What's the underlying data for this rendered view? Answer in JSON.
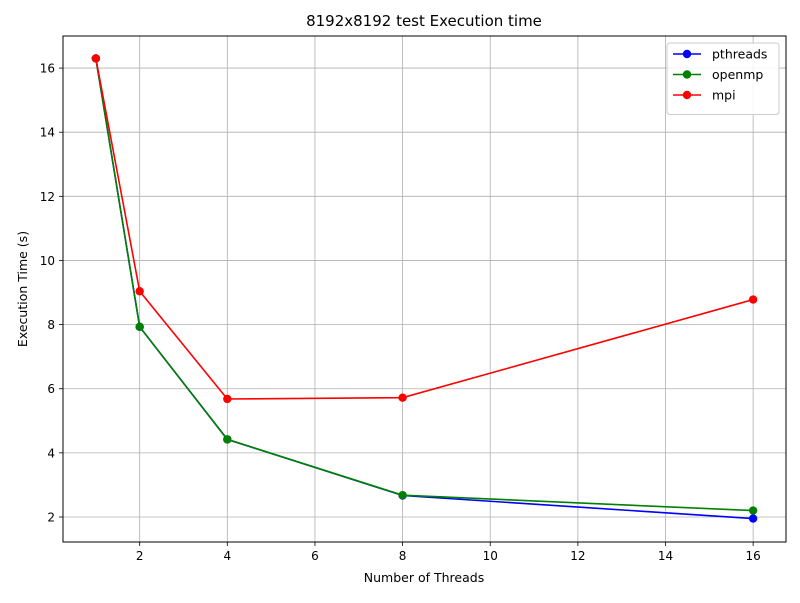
{
  "chart_data": {
    "type": "line",
    "title": "8192x8192 test Execution time",
    "xlabel": "Number of Threads",
    "ylabel": "Execution Time (s)",
    "xlim": [
      0.25,
      16.75
    ],
    "ylim": [
      1.22,
      17.0
    ],
    "xticks": [
      2,
      4,
      6,
      8,
      10,
      12,
      14,
      16
    ],
    "yticks": [
      2,
      4,
      6,
      8,
      10,
      12,
      14,
      16
    ],
    "grid": true,
    "legend_position": "top-right",
    "x": [
      1,
      2,
      4,
      8,
      16
    ],
    "series": [
      {
        "name": "pthreads",
        "color": "#0000ff",
        "marker": "circle",
        "values": [
          16.3,
          7.93,
          4.42,
          2.67,
          1.95
        ]
      },
      {
        "name": "openmp",
        "color": "#008000",
        "marker": "circle",
        "values": [
          16.3,
          7.93,
          4.42,
          2.68,
          2.2
        ]
      },
      {
        "name": "mpi",
        "color": "#ff0000",
        "marker": "circle",
        "values": [
          16.3,
          9.04,
          5.68,
          5.72,
          8.78
        ]
      }
    ]
  }
}
